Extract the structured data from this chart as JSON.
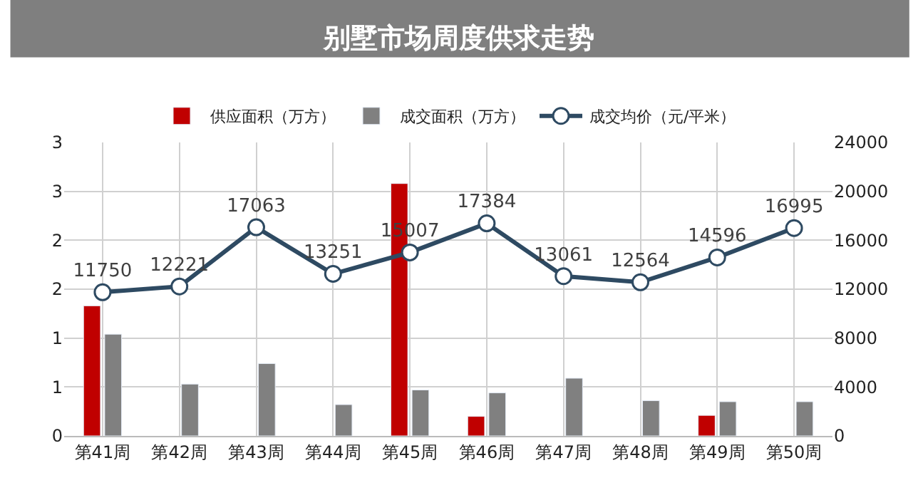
{
  "chart_data": {
    "type": "bar",
    "title": "别墅市场周度供求走势",
    "categories": [
      "第41周",
      "第42周",
      "第43周",
      "第44周",
      "第45周",
      "第46周",
      "第47周",
      "第48周",
      "第49周",
      "第50周"
    ],
    "series": [
      {
        "name": "供应面积（万方）",
        "color": "#c00000",
        "values": [
          1.33,
          null,
          null,
          null,
          2.58,
          0.2,
          null,
          null,
          0.21,
          null
        ]
      },
      {
        "name": "成交面积（万方）",
        "color": "#808080",
        "values": [
          1.04,
          0.53,
          0.74,
          0.32,
          0.47,
          0.44,
          0.59,
          0.36,
          0.35,
          0.35
        ]
      },
      {
        "name": "成交均价（元/平米）",
        "type": "line",
        "axis": "y2",
        "color": "#2e4a62",
        "marker": "circle",
        "data_labels": true,
        "values": [
          11750,
          12221,
          17063,
          13251,
          15007,
          17384,
          13061,
          12564,
          14596,
          16995
        ]
      }
    ],
    "ylim": [
      0,
      3
    ],
    "yticks": [
      0,
      {
        "value": 0.5,
        "label": "1"
      },
      1,
      {
        "value": 1.5,
        "label": "2"
      },
      2,
      {
        "value": 2.5,
        "label": "3"
      },
      3
    ],
    "y2lim": [
      0,
      24000
    ],
    "y2ticks": [
      0,
      4000,
      8000,
      12000,
      16000,
      20000,
      24000
    ],
    "grid": true,
    "legend": "top"
  }
}
